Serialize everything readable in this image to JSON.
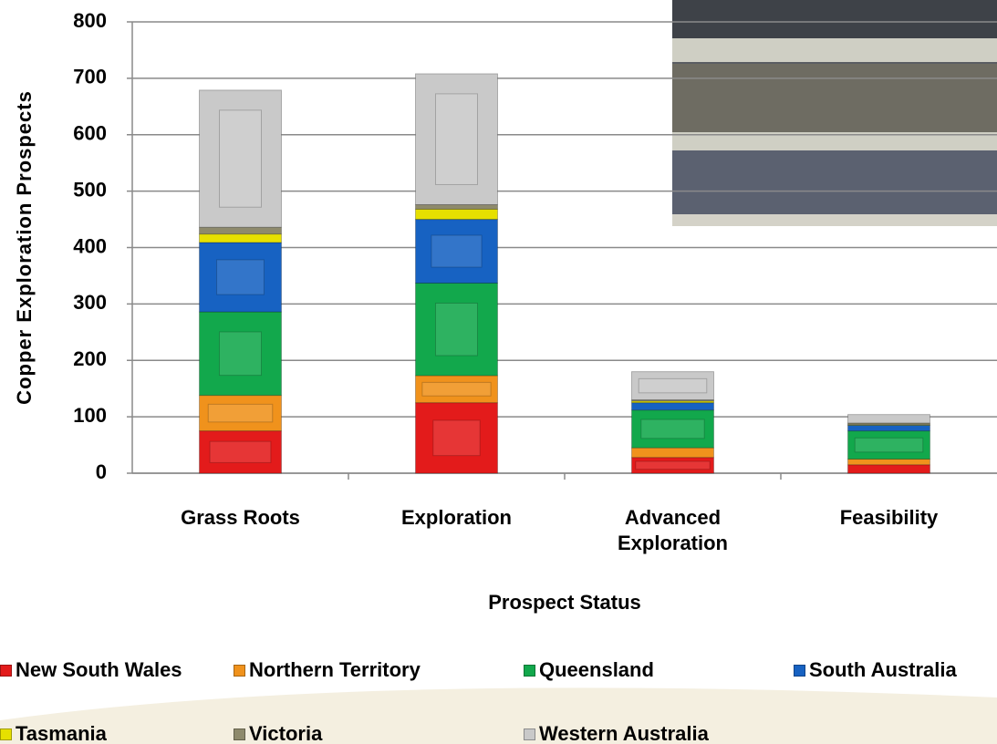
{
  "chart_data": {
    "type": "bar",
    "stacked": true,
    "y_label": "Copper Exploration Prospects",
    "x_label": "Prospect Status",
    "categories": [
      "Grass Roots",
      "Exploration",
      "Advanced Exploration",
      "Feasibility"
    ],
    "series": [
      {
        "name": "New South Wales",
        "color": "#e31b1b",
        "values": [
          75,
          125,
          28,
          15
        ]
      },
      {
        "name": "Northern Territory",
        "color": "#f0921c",
        "values": [
          63,
          48,
          17,
          10
        ]
      },
      {
        "name": "Queensland",
        "color": "#12a84c",
        "values": [
          148,
          164,
          67,
          50
        ]
      },
      {
        "name": "South Australia",
        "color": "#1762c2",
        "values": [
          123,
          113,
          13,
          10
        ]
      },
      {
        "name": "Tasmania",
        "color": "#e6e000",
        "values": [
          15,
          18,
          3,
          1
        ]
      },
      {
        "name": "Victoria",
        "color": "#8e8a6c",
        "values": [
          12,
          8,
          2,
          3
        ]
      },
      {
        "name": "Western Australia",
        "color": "#c9c9c9",
        "values": [
          243,
          232,
          50,
          15
        ]
      }
    ],
    "ylim": [
      0,
      800
    ],
    "yticks": [
      0,
      100,
      200,
      300,
      400,
      500,
      600,
      700,
      800
    ],
    "grid": true,
    "legend": "bottom"
  }
}
